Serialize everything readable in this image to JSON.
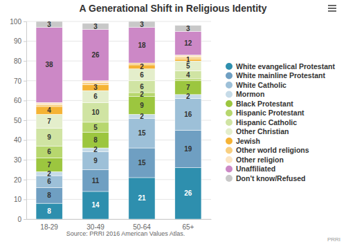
{
  "chart_data": {
    "type": "bar",
    "stacked": true,
    "title": "A Generational Shift in Religious Identity",
    "annotations": [
      "Source: PRRI 2016 American Values Atlas.",
      "PRRI"
    ],
    "categories": [
      "18-29",
      "30-49",
      "50-64",
      "65+"
    ],
    "ylim": [
      0,
      100
    ],
    "yticks": [
      0,
      10,
      20,
      30,
      40,
      50,
      60,
      70,
      80,
      90,
      100
    ],
    "grid": true,
    "legend": "right",
    "data_labels": true,
    "series": [
      {
        "name": "White evangelical Protestant",
        "color": "#2e8fae",
        "values": [
          8,
          14,
          21,
          26
        ],
        "value_labels": [
          "8",
          "14",
          "21",
          "26"
        ]
      },
      {
        "name": "White mainline Protestant",
        "color": "#6f9fc2",
        "values": [
          8,
          11,
          15,
          19
        ],
        "value_labels": [
          "8",
          "11",
          "15",
          "19"
        ]
      },
      {
        "name": "White Catholic",
        "color": "#9dc0d8",
        "values": [
          6,
          9,
          15,
          16
        ],
        "value_labels": [
          "6",
          "9",
          "15",
          "16"
        ]
      },
      {
        "name": "Mormon",
        "color": "#c6dbe8",
        "values": [
          2,
          2,
          2,
          2
        ],
        "value_labels": [
          "2",
          "2",
          "2",
          "2"
        ]
      },
      {
        "name": "Black Protestant",
        "color": "#9cc63f",
        "values": [
          7,
          8,
          9,
          7
        ],
        "value_labels": [
          "7",
          "8",
          "9",
          "7"
        ]
      },
      {
        "name": "Hispanic Protestant",
        "color": "#b7d76e",
        "values": [
          6,
          5,
          2,
          1
        ],
        "value_labels": [
          "6",
          "5",
          "2",
          null
        ]
      },
      {
        "name": "Hispanic Catholic",
        "color": "#d0e4a3",
        "values": [
          9,
          10,
          6,
          4
        ],
        "value_labels": [
          "9",
          "10",
          "6",
          "4"
        ]
      },
      {
        "name": "Other Christian",
        "color": "#e4eecb",
        "values": [
          7,
          6,
          6,
          5
        ],
        "value_labels": [
          "7",
          "6",
          "6",
          "5"
        ]
      },
      {
        "name": "Jewish",
        "color": "#f5b335",
        "values": [
          4,
          3,
          2,
          1
        ],
        "value_labels": [
          "4",
          "3",
          "2",
          "1"
        ]
      },
      {
        "name": "Other world religions",
        "color": "#f8cf80",
        "values": [
          1,
          1,
          1,
          1
        ],
        "value_labels": [
          null,
          null,
          null,
          null
        ]
      },
      {
        "name": "Other religion",
        "color": "#fbe5c4",
        "values": [
          1,
          1,
          0,
          1
        ],
        "value_labels": [
          null,
          null,
          null,
          null
        ]
      },
      {
        "name": "Unaffiliated",
        "color": "#cc88c6",
        "values": [
          38,
          26,
          18,
          12
        ],
        "value_labels": [
          "38",
          "26",
          "18",
          "12"
        ]
      },
      {
        "name": "Don't know/Refused",
        "color": "#c8c8c8",
        "values": [
          3,
          3,
          3,
          3
        ],
        "value_labels": [
          "3",
          "3",
          "3",
          "3"
        ]
      }
    ]
  }
}
